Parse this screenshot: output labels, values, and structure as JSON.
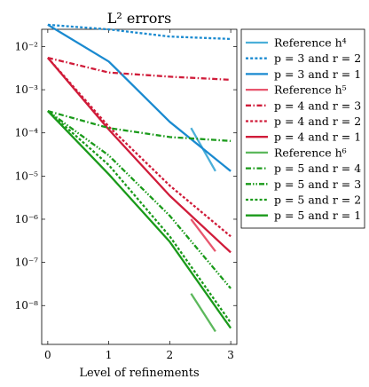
{
  "chart_data": {
    "type": "line",
    "title": "L² errors",
    "xlabel": "Level of refinements",
    "ylabel": "",
    "x_ticks": [
      0,
      1,
      2,
      3
    ],
    "x_tick_labels": [
      "0",
      "1",
      "2",
      "3"
    ],
    "xlim": [
      -0.1,
      3.1
    ],
    "yscale": "log",
    "ylim_exp": [
      -8.9,
      -1.6
    ],
    "y_ticks_exp": [
      -2,
      -3,
      -4,
      -5,
      -6,
      -7,
      -8
    ],
    "y_tick_labels": [
      "10⁻²",
      "10⁻³",
      "10⁻⁴",
      "10⁻⁵",
      "10⁻⁶",
      "10⁻⁷",
      "10⁻⁸"
    ],
    "legend_position": "outside-right",
    "series": [
      {
        "name": "Reference h⁴",
        "color": "#4bafd9",
        "dash": "solid",
        "x": [
          2.35,
          2.75
        ],
        "y": [
          0.00013,
          1.3e-05
        ]
      },
      {
        "name": "p = 3 and r = 2",
        "color": "#1a8ad0",
        "dash": "dotted",
        "x": [
          0,
          1,
          2,
          3
        ],
        "y": [
          0.032,
          0.025,
          0.017,
          0.015
        ]
      },
      {
        "name": "p = 3 and r = 1",
        "color": "#1a8ad0",
        "dash": "solid",
        "x": [
          0,
          1,
          2,
          3
        ],
        "y": [
          0.032,
          0.0045,
          0.00018,
          1.3e-05
        ]
      },
      {
        "name": "Reference h⁵",
        "color": "#e8566e",
        "dash": "solid",
        "x": [
          2.35,
          2.75
        ],
        "y": [
          1e-06,
          1.8e-07
        ]
      },
      {
        "name": "p = 4 and r = 3",
        "color": "#d01c3a",
        "dash": "dashdot",
        "x": [
          0,
          1,
          2,
          3
        ],
        "y": [
          0.0055,
          0.0025,
          0.002,
          0.0017
        ]
      },
      {
        "name": "p = 4 and r = 2",
        "color": "#d01c3a",
        "dash": "dotted",
        "x": [
          0,
          1,
          2,
          3
        ],
        "y": [
          0.0055,
          0.00014,
          6e-06,
          4e-07
        ]
      },
      {
        "name": "p = 4 and r = 1",
        "color": "#d01c3a",
        "dash": "solid",
        "x": [
          0,
          1,
          2,
          3
        ],
        "y": [
          0.0055,
          0.00012,
          3.5e-06,
          1.7e-07
        ]
      },
      {
        "name": "Reference h⁶",
        "color": "#5cb85c",
        "dash": "solid",
        "x": [
          2.35,
          2.75
        ],
        "y": [
          1.9e-08,
          2.5e-09
        ]
      },
      {
        "name": "p = 5 and r = 4",
        "color": "#1a9a1a",
        "dash": "dashdot",
        "x": [
          0,
          1,
          2,
          3
        ],
        "y": [
          0.00032,
          0.00013,
          8e-05,
          6.5e-05
        ]
      },
      {
        "name": "p = 5 and r = 3",
        "color": "#1a9a1a",
        "dash": "dashdotdot",
        "x": [
          0,
          1,
          2,
          3
        ],
        "y": [
          0.00032,
          3e-05,
          1.2e-06,
          2.5e-08
        ]
      },
      {
        "name": "p = 5 and r = 2",
        "color": "#1a9a1a",
        "dash": "dotted",
        "x": [
          0,
          1,
          2,
          3
        ],
        "y": [
          0.00032,
          1.8e-05,
          4e-07,
          4e-09
        ]
      },
      {
        "name": "p = 5 and r = 1",
        "color": "#1a9a1a",
        "dash": "solid",
        "x": [
          0,
          1,
          2,
          3
        ],
        "y": [
          0.00032,
          1.1e-05,
          3e-07,
          3e-09
        ]
      }
    ]
  }
}
